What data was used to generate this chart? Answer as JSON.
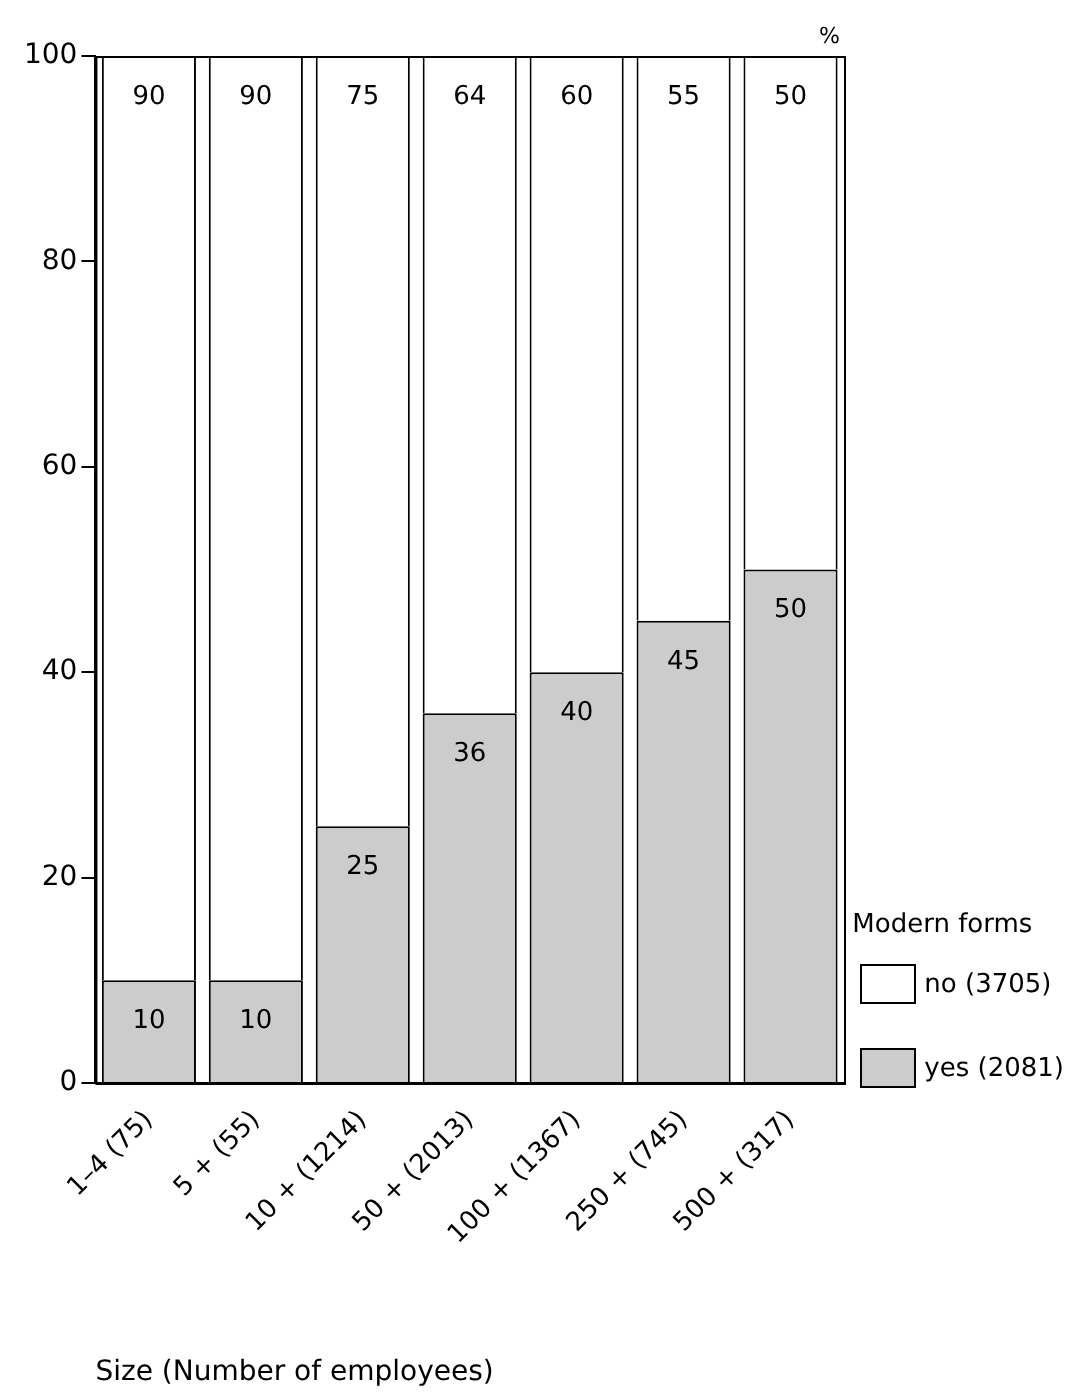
{
  "chart_data": {
    "type": "bar",
    "stacked": true,
    "ylabel": "%",
    "xlabel": "Size (Number of employees)",
    "legend_title": "Modern forms",
    "legend": "bottom right",
    "categories": [
      "1–4 (75)",
      "5 + (55)",
      "10 + (1214)",
      "50 + (2013)",
      "100 + (1367)",
      "250 + (745)",
      "500 + (317)"
    ],
    "series": [
      {
        "name": "yes (2081)",
        "color": "#cccccc",
        "values": [
          10,
          10,
          25,
          36,
          40,
          45,
          50
        ]
      },
      {
        "name": "no (3705)",
        "color": "#ffffff",
        "values": [
          90,
          90,
          75,
          64,
          60,
          55,
          50
        ]
      }
    ],
    "ylim": [
      0,
      100
    ],
    "yticks": [
      0,
      20,
      40,
      60,
      80,
      100
    ],
    "grid": false,
    "data_labels": true
  }
}
